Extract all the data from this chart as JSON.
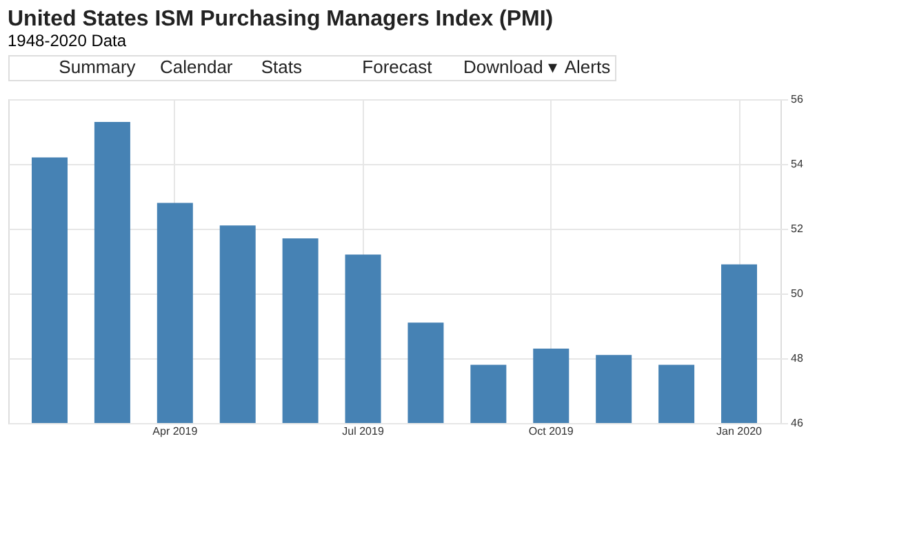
{
  "chart_data": {
    "type": "bar",
    "title": "United States ISM Purchasing Managers Index (PMI)",
    "subtitle": "1948-2020 Data",
    "categories": [
      null,
      null,
      "Apr 2019",
      null,
      null,
      "Jul 2019",
      null,
      null,
      "Oct 2019",
      null,
      null,
      "Jan 2020"
    ],
    "values": [
      54.2,
      55.3,
      52.8,
      52.1,
      51.7,
      51.2,
      49.1,
      47.8,
      48.3,
      48.1,
      47.8,
      50.9
    ],
    "color": "#4682b4",
    "ylim": [
      46,
      56
    ],
    "yticks": [
      46,
      48,
      50,
      52,
      54,
      56
    ],
    "grid": true,
    "annotations": [
      "Summary",
      "Calendar",
      "Stats",
      "Forecast",
      "Download ▾",
      "Alerts"
    ]
  }
}
